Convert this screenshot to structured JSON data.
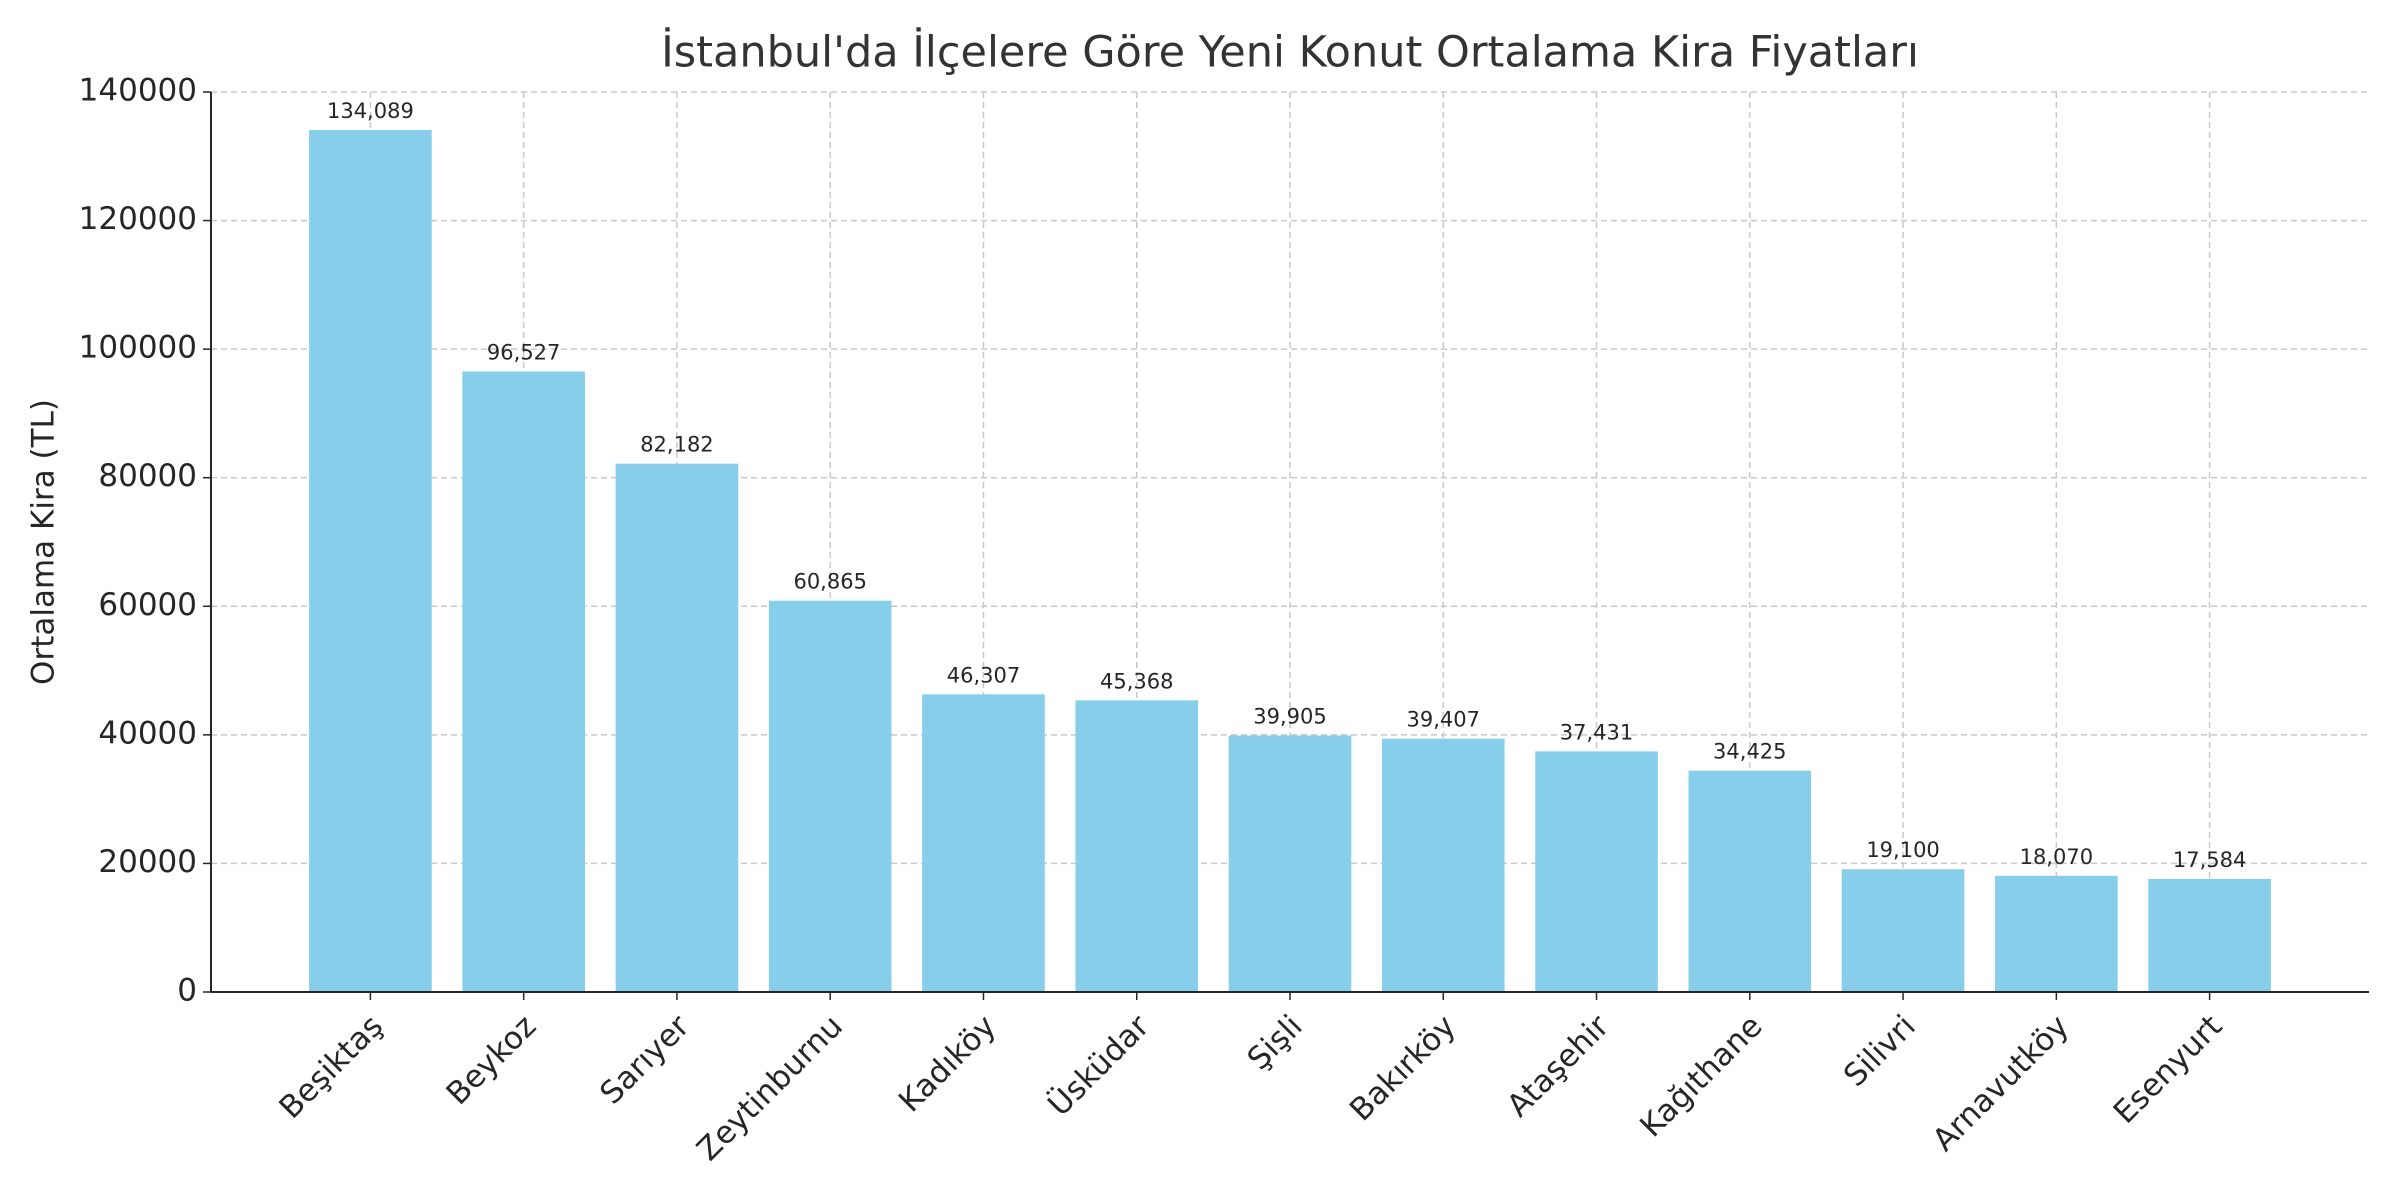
{
  "chart_data": {
    "type": "bar",
    "title": "İstanbul'da İlçelere Göre Yeni Konut Ortalama Kira Fiyatları",
    "y_label": "Ortalama Kira (TL)",
    "categories": [
      "Beşiktaş",
      "Beykoz",
      "Sarıyer",
      "Zeytinburnu",
      "Kadıköy",
      "Üsküdar",
      "Şişli",
      "Bakırköy",
      "Ataşehir",
      "Kağıthane",
      "Silivri",
      "Arnavutköy",
      "Esenyurt"
    ],
    "values": [
      134089,
      96527,
      82182,
      60865,
      46307,
      45368,
      39905,
      39407,
      37431,
      34425,
      19100,
      18070,
      17584
    ],
    "value_labels": [
      "134,089",
      "96,527",
      "82,182",
      "60,865",
      "46,307",
      "45,368",
      "39,905",
      "39,407",
      "37,431",
      "34,425",
      "19,100",
      "18,070",
      "17,584"
    ],
    "color": "#87ceeb",
    "ylim": [
      0,
      140000
    ],
    "yticks": [
      0,
      20000,
      40000,
      60000,
      80000,
      100000,
      120000,
      140000
    ],
    "grid": true
  }
}
